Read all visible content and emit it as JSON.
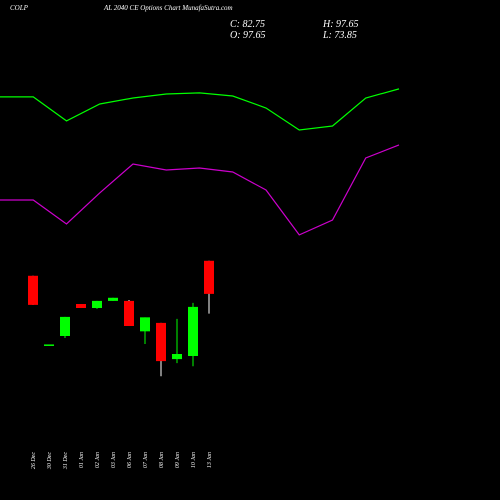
{
  "chart_data": [
    {
      "type": "candlestick",
      "title": "COLP",
      "subtitle": "AL 2040 CE Options Chart MunafaSutra.com",
      "ohlc_labels": [
        "C: 82.75",
        "H: 97.65",
        "O: 97.65",
        "L: 73.85"
      ],
      "categories": [
        "26 Dec",
        "30 Dec",
        "31 Dec",
        "01 Jan",
        "02 Jan",
        "03 Jan",
        "06 Jan",
        "07 Jan",
        "08 Jan",
        "09 Jan",
        "10 Jan",
        "13 Jan"
      ],
      "open": [
        90.9,
        59.5,
        63.8,
        78.2,
        76.4,
        79.6,
        79.6,
        65.9,
        69.7,
        53.4,
        54.8,
        97.65
      ],
      "high": [
        90.9,
        60.0,
        72.4,
        78.2,
        79.6,
        81.0,
        80.0,
        72.2,
        69.7,
        71.5,
        78.7,
        97.65
      ],
      "low": [
        77.8,
        59.5,
        62.9,
        76.4,
        76.0,
        79.6,
        68.3,
        60.2,
        45.7,
        51.6,
        50.2,
        73.85
      ],
      "close": [
        77.8,
        60.0,
        72.4,
        76.4,
        79.6,
        81.0,
        68.3,
        72.2,
        52.5,
        55.7,
        76.9,
        82.75
      ],
      "up_color": "#00ff00",
      "down_color": "#ff0000",
      "ylim": [
        -10,
        215
      ]
    },
    {
      "type": "line",
      "categories": [
        null,
        null,
        null,
        null,
        null,
        null,
        null,
        null,
        null,
        null,
        null,
        null,
        null
      ],
      "series": [
        {
          "color": "#00ff00",
          "values": [
            171.4,
            171.4,
            160.6,
            168.2,
            170.9,
            172.7,
            173.2,
            171.8,
            166.4,
            156.5,
            158.3,
            170.9,
            175.0
          ]
        },
        {
          "color": "#cc00cc",
          "values": [
            125.0,
            125.0,
            114.2,
            128.2,
            141.2,
            138.5,
            139.4,
            137.6,
            129.5,
            109.3,
            116.0,
            143.9,
            149.8
          ]
        }
      ],
      "ylim": [
        -10,
        215
      ]
    }
  ]
}
